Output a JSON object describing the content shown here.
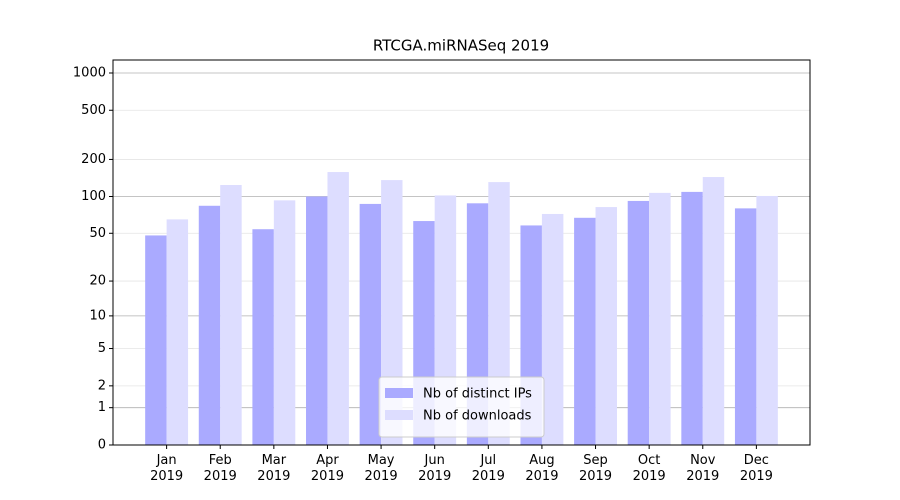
{
  "chart_data": {
    "type": "bar",
    "title": "RTCGA.miRNASeq 2019",
    "categories": [
      "Jan\n2019",
      "Feb\n2019",
      "Mar\n2019",
      "Apr\n2019",
      "May\n2019",
      "Jun\n2019",
      "Jul\n2019",
      "Aug\n2019",
      "Sep\n2019",
      "Oct\n2019",
      "Nov\n2019",
      "Dec\n2019"
    ],
    "series": [
      {
        "name": "Nb of distinct IPs",
        "color": "#aaaaff",
        "values": [
          48,
          84,
          54,
          100,
          87,
          63,
          88,
          58,
          67,
          92,
          109,
          80
        ]
      },
      {
        "name": "Nb of downloads",
        "color": "#ddddff",
        "values": [
          65,
          124,
          93,
          158,
          136,
          102,
          131,
          72,
          82,
          107,
          144,
          101
        ]
      }
    ],
    "yscale": "log1p",
    "ylim": [
      0,
      1273
    ],
    "yticks": [
      0,
      1,
      2,
      5,
      10,
      20,
      50,
      100,
      200,
      500,
      1000
    ],
    "grid": true,
    "legend": "lower center"
  }
}
